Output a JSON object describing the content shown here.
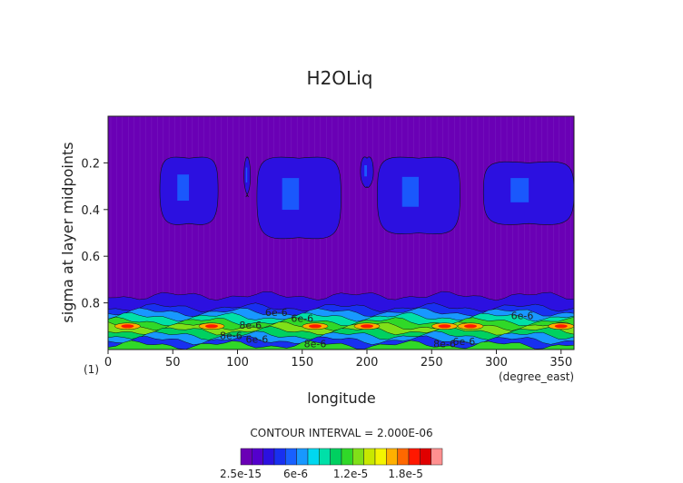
{
  "chart_data": {
    "type": "heatmap",
    "title": "H2OLiq",
    "xlabel": "longitude",
    "ylabel": "sigma at layer midpoints",
    "x_units": "(degree_east)",
    "corner_label": "(1)",
    "xlim": [
      0,
      360
    ],
    "ylim": [
      1.0,
      0.0
    ],
    "x_ticks": [
      0,
      50,
      100,
      150,
      200,
      250,
      300,
      350
    ],
    "y_ticks": [
      0.2,
      0.4,
      0.6,
      0.8
    ],
    "contour_interval_label": "CONTOUR INTERVAL = 2.000E-06",
    "colorbar": {
      "tick_labels": [
        "2.5e-15",
        "6e-6",
        "1.2e-5",
        "1.8e-5"
      ],
      "tick_values": [
        0,
        6e-06,
        1.2e-05,
        1.8e-05
      ],
      "vmin": 0,
      "vmax": 2.2e-05,
      "colors": [
        "#6a00b5",
        "#5400cc",
        "#2c10e0",
        "#1830f0",
        "#1860ff",
        "#1898ff",
        "#00d8f0",
        "#00e0a8",
        "#00d060",
        "#30d828",
        "#80e018",
        "#c8e800",
        "#f4f400",
        "#ffb000",
        "#ff6800",
        "#ff1800",
        "#e00000",
        "#ff9090"
      ]
    },
    "contour_labels": [
      {
        "text": "6e-6",
        "x": 130,
        "y": 0.84
      },
      {
        "text": "8e-6",
        "x": 110,
        "y": 0.895
      },
      {
        "text": "6e-6",
        "x": 150,
        "y": 0.865
      },
      {
        "text": "6e-6",
        "x": 320,
        "y": 0.855
      },
      {
        "text": "8e-6",
        "x": 95,
        "y": 0.94
      },
      {
        "text": "6e-6",
        "x": 115,
        "y": 0.955
      },
      {
        "text": "8e-6",
        "x": 160,
        "y": 0.975
      },
      {
        "text": "8e-6",
        "x": 260,
        "y": 0.975
      },
      {
        "text": "6e-6",
        "x": 275,
        "y": 0.965
      }
    ]
  }
}
